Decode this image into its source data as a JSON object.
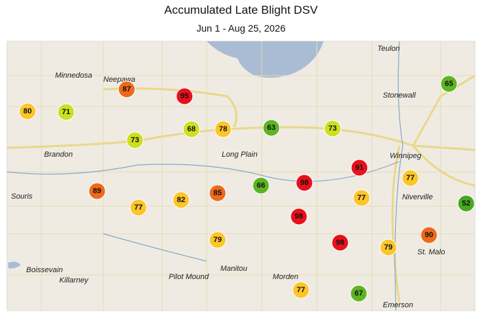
{
  "header": {
    "title": "Accumulated Late Blight DSV",
    "subtitle": "Jun 1 - Aug 25, 2026"
  },
  "places": [
    {
      "label": "Teulon"
    },
    {
      "label": "Minnedosa"
    },
    {
      "label": "Neepawa"
    },
    {
      "label": "Stonewall"
    },
    {
      "label": "Winnipeg"
    },
    {
      "label": "Brandon"
    },
    {
      "label": "Long Plain"
    },
    {
      "label": "Souris"
    },
    {
      "label": "Niverville"
    },
    {
      "label": "St. Malo"
    },
    {
      "label": "Boissevain"
    },
    {
      "label": "Killarney"
    },
    {
      "label": "Pilot Mound"
    },
    {
      "label": "Manitou"
    },
    {
      "label": "Morden"
    },
    {
      "label": "Emerson"
    }
  ],
  "markers": [
    {
      "value": 80,
      "color": "#fcc62a"
    },
    {
      "value": 71,
      "color": "#cde020"
    },
    {
      "value": 87,
      "color": "#ed6a1a"
    },
    {
      "value": 95,
      "color": "#e8101a"
    },
    {
      "value": 73,
      "color": "#cde020"
    },
    {
      "value": 68,
      "color": "#cde020"
    },
    {
      "value": 78,
      "color": "#fcc62a"
    },
    {
      "value": 63,
      "color": "#5db524"
    },
    {
      "value": 73,
      "color": "#cde020"
    },
    {
      "value": 65,
      "color": "#5db524"
    },
    {
      "value": 91,
      "color": "#e8101a"
    },
    {
      "value": 77,
      "color": "#fcc62a"
    },
    {
      "value": 89,
      "color": "#ed6a1a"
    },
    {
      "value": 77,
      "color": "#fcc62a"
    },
    {
      "value": 82,
      "color": "#fcc62a"
    },
    {
      "value": 85,
      "color": "#ed6a1a"
    },
    {
      "value": 66,
      "color": "#5db524"
    },
    {
      "value": 98,
      "color": "#e8101a"
    },
    {
      "value": 77,
      "color": "#fcc62a"
    },
    {
      "value": 52,
      "color": "#4aa820"
    },
    {
      "value": 98,
      "color": "#e8101a"
    },
    {
      "value": 79,
      "color": "#fcc62a"
    },
    {
      "value": 98,
      "color": "#e8101a"
    },
    {
      "value": 79,
      "color": "#fcc62a"
    },
    {
      "value": 90,
      "color": "#ed6a1a"
    },
    {
      "value": 77,
      "color": "#fcc62a"
    },
    {
      "value": 67,
      "color": "#5db524"
    }
  ]
}
